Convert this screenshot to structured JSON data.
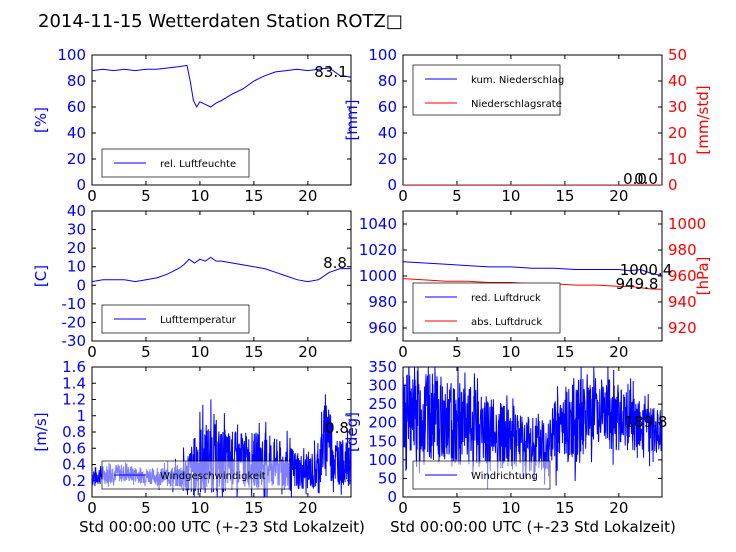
{
  "title": "2014-11-15 Wetterdaten Station ROTZ□",
  "xlabel": "Std 00:00:00 UTC (+-23 Std Lokalzeit)",
  "colors": {
    "primary": "#0000ff",
    "secondary": "#ff0000",
    "tertiary": "#7070ff"
  },
  "chart_data": [
    {
      "type": "line",
      "ylabel": "[%]",
      "xlim": [
        0,
        24
      ],
      "ylim": [
        0,
        100
      ],
      "xticks": [
        0,
        5,
        10,
        15,
        20
      ],
      "yticks": [
        0,
        20,
        40,
        60,
        80,
        100
      ],
      "legend": "lower-left",
      "annotation": "83.1",
      "series": [
        {
          "name": "rel. Luftfeuchte",
          "color": "#0000ff",
          "x": [
            0,
            1,
            2,
            3,
            4,
            5,
            6,
            7,
            8,
            8.8,
            9.1,
            9.4,
            9.7,
            10,
            10.5,
            11,
            11.5,
            12,
            13,
            14,
            15,
            16,
            17,
            18,
            19,
            20,
            21,
            22,
            23,
            24
          ],
          "y": [
            88,
            89,
            88,
            89,
            88,
            89,
            89,
            90,
            91,
            92,
            80,
            65,
            60,
            64,
            62,
            60,
            63,
            65,
            70,
            74,
            80,
            84,
            87,
            88,
            89,
            88,
            89,
            90,
            84,
            83
          ]
        }
      ]
    },
    {
      "type": "line",
      "ylabel": "[mm]",
      "ylabel_right": "[mm/std]",
      "xlim": [
        0,
        24
      ],
      "ylim": [
        0,
        100
      ],
      "ylim_right": [
        0,
        50
      ],
      "xticks": [
        0,
        5,
        10,
        15,
        20
      ],
      "yticks": [
        0,
        20,
        40,
        60,
        80,
        100
      ],
      "yticks_right": [
        0,
        10,
        20,
        30,
        40,
        50
      ],
      "legend": "upper-left",
      "annotation": "0.0",
      "annotation2": "0.0",
      "series": [
        {
          "name": "kum. Niederschlag",
          "color": "#0000ff",
          "axis": "left",
          "x": [
            0,
            24
          ],
          "y": [
            0,
            0
          ]
        },
        {
          "name": "Niederschlagsrate",
          "color": "#ff0000",
          "axis": "right",
          "x": [
            0,
            24
          ],
          "y": [
            0,
            0
          ]
        }
      ]
    },
    {
      "type": "line",
      "ylabel": "[C]",
      "xlim": [
        0,
        24
      ],
      "ylim": [
        -30,
        40
      ],
      "xticks": [
        0,
        5,
        10,
        15,
        20
      ],
      "yticks": [
        -30,
        -20,
        -10,
        0,
        10,
        20,
        30,
        40
      ],
      "legend": "lower-left",
      "annotation": "8.8",
      "series": [
        {
          "name": "Lufttemperatur",
          "color": "#0000ff",
          "x": [
            0,
            1,
            2,
            3,
            4,
            5,
            6,
            7,
            8,
            8.5,
            9,
            9.5,
            10,
            10.5,
            11,
            11.5,
            12,
            13,
            14,
            15,
            16,
            17,
            18,
            19,
            20,
            21,
            22,
            23,
            24
          ],
          "y": [
            2,
            3,
            3,
            3,
            2,
            3,
            4,
            6,
            9,
            11,
            14,
            12,
            14,
            13,
            15,
            13,
            13,
            12,
            11,
            10,
            9,
            7,
            5,
            3,
            2,
            3,
            7,
            9,
            9
          ]
        }
      ]
    },
    {
      "type": "line",
      "ylabel_right": "[hPa]",
      "xlim": [
        0,
        24
      ],
      "ylim": [
        950,
        1050
      ],
      "ylim_right": [
        910,
        1010
      ],
      "xticks": [
        0,
        5,
        10,
        15,
        20
      ],
      "yticks": [
        960,
        980,
        1000,
        1020,
        1040
      ],
      "yticks_right": [
        920,
        940,
        960,
        980,
        1000
      ],
      "legend": "lower-left",
      "annotation": "1000.4",
      "annotation2": "949.8",
      "series": [
        {
          "name": "red. Luftdruck",
          "color": "#0000ff",
          "axis": "left",
          "x": [
            0,
            2,
            4,
            6,
            8,
            10,
            12,
            14,
            16,
            18,
            20,
            21,
            22,
            23,
            24
          ],
          "y": [
            1011,
            1010,
            1009,
            1008,
            1007,
            1007,
            1006,
            1006,
            1005,
            1005,
            1005,
            1004,
            1005,
            1002,
            1000.4
          ]
        },
        {
          "name": "abs. Luftdruck",
          "color": "#ff0000",
          "axis": "right",
          "x": [
            0,
            2,
            4,
            6,
            8,
            10,
            12,
            14,
            16,
            18,
            20,
            21,
            22,
            23,
            24
          ],
          "y": [
            958,
            957,
            956,
            956,
            955,
            955,
            954,
            954,
            953,
            953,
            952,
            952,
            951,
            950,
            949.8
          ]
        }
      ]
    },
    {
      "type": "line",
      "ylabel": "[m/s]",
      "xlim": [
        0,
        24
      ],
      "ylim": [
        0,
        1.6
      ],
      "xticks": [
        0,
        5,
        10,
        15,
        20
      ],
      "yticks": [
        0,
        0.2,
        0.4,
        0.6,
        0.8,
        1.0,
        1.2,
        1.4,
        1.6
      ],
      "legend": "lower-left",
      "annotation": "0.8",
      "series": [
        {
          "name": "Windgeschwindigkeit",
          "color": "#0000ff",
          "noisy": true,
          "seed": 7,
          "x": [
            0,
            2,
            4,
            6,
            8,
            9,
            10,
            11,
            12,
            14,
            16,
            18,
            20,
            21,
            21.8,
            22.5,
            24
          ],
          "y": [
            0.25,
            0.3,
            0.28,
            0.25,
            0.25,
            0.3,
            0.45,
            0.5,
            0.45,
            0.45,
            0.45,
            0.35,
            0.3,
            0.35,
            0.9,
            0.45,
            0.4
          ],
          "amp": [
            0.12,
            0.12,
            0.1,
            0.1,
            0.15,
            0.3,
            0.45,
            0.45,
            0.4,
            0.35,
            0.35,
            0.3,
            0.2,
            0.3,
            0.5,
            0.3,
            0.25
          ]
        }
      ]
    },
    {
      "type": "line",
      "ylabel": "[deg]",
      "xlim": [
        0,
        24
      ],
      "ylim": [
        0,
        350
      ],
      "xticks": [
        0,
        5,
        10,
        15,
        20
      ],
      "yticks": [
        0,
        50,
        100,
        150,
        200,
        250,
        300,
        350
      ],
      "legend": "lower-left",
      "annotation": "189.8",
      "series": [
        {
          "name": "Windrichtung",
          "color": "#0000ff",
          "noisy": true,
          "seed": 13,
          "x": [
            0,
            2,
            4,
            6,
            8,
            10,
            12,
            14,
            16,
            18,
            20,
            22,
            24
          ],
          "y": [
            230,
            220,
            200,
            190,
            180,
            160,
            130,
            160,
            220,
            240,
            210,
            190,
            180
          ],
          "amp": [
            120,
            120,
            120,
            110,
            100,
            90,
            90,
            100,
            110,
            100,
            90,
            70,
            60
          ]
        }
      ]
    }
  ]
}
